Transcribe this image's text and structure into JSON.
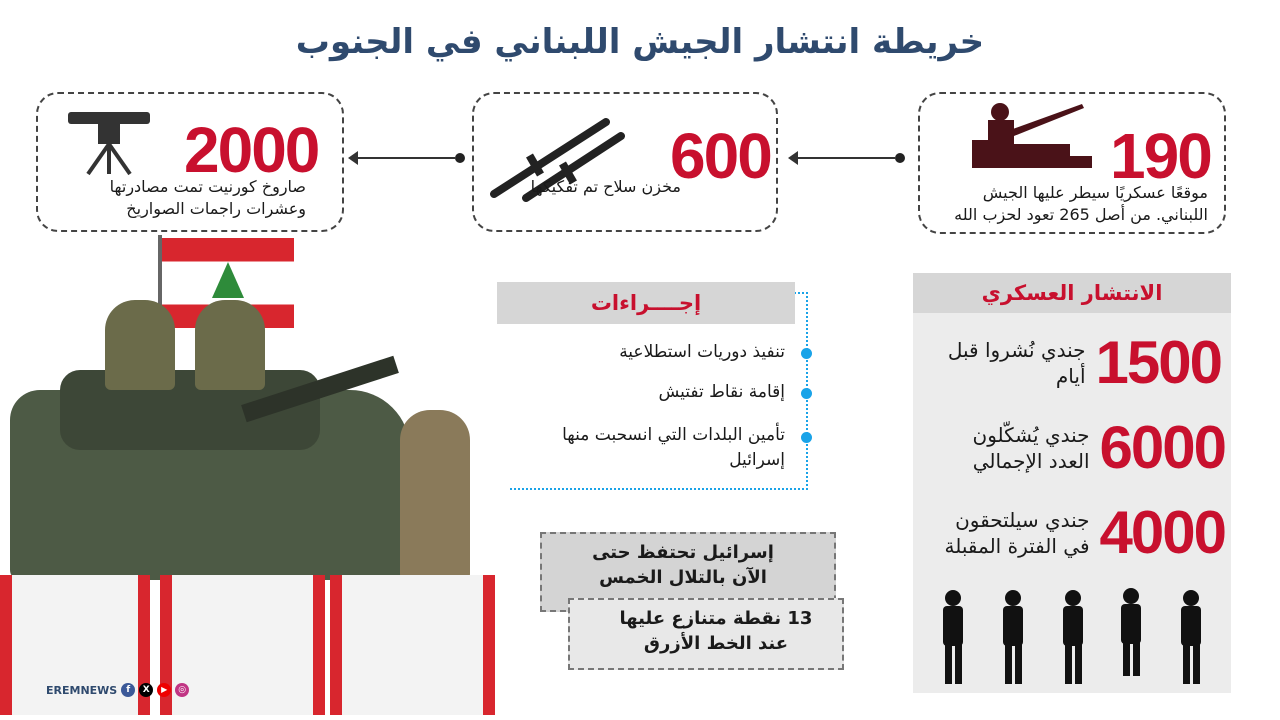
{
  "title": "خريطة انتشار الجيش اللبناني في الجنوب",
  "stats": [
    {
      "value": "190",
      "text_1": "موقعًا عسكريًا سيطر عليها الجيش",
      "text_2": "اللبناني. من أصل 265 تعود لحزب الله",
      "icon": "armored-gunner-icon"
    },
    {
      "value": "600",
      "text_1": "مخزن سلاح تم تفكيكها",
      "icon": "rifles-icon"
    },
    {
      "value": "2000",
      "text_1": "صاروخ كورنيت تمت مصادرتها",
      "text_2": "وعشرات راجمات الصواريخ",
      "icon": "missile-launcher-icon"
    }
  ],
  "deployment": {
    "title": "الانتشار العسكري",
    "rows": [
      {
        "value": "1500",
        "text": "جندي نُشروا قبل أيام"
      },
      {
        "value": "6000",
        "text": "جندي يُشكّلون العدد الإجمالي"
      },
      {
        "value": "4000",
        "text": "جندي سيلتحقون في الفترة المقبلة"
      }
    ]
  },
  "actions": {
    "title": "إجــــراءات",
    "items": [
      "تنفيذ دوريات  استطلاعية",
      "إقامة نقاط تفتيش",
      "تأمين البلدات التي انسحبت منها إسرائيل"
    ]
  },
  "notes": [
    {
      "text": "إسرائيل تحتفظ حتى الآن بالتلال الخمس"
    },
    {
      "text": "13 نقطة متنازع عليها عند الخط الأزرق"
    }
  ],
  "brand": "EREMNEWS",
  "colors": {
    "accent": "#c8102e",
    "title": "#2f4a6e",
    "bullet": "#1aa3e8"
  }
}
